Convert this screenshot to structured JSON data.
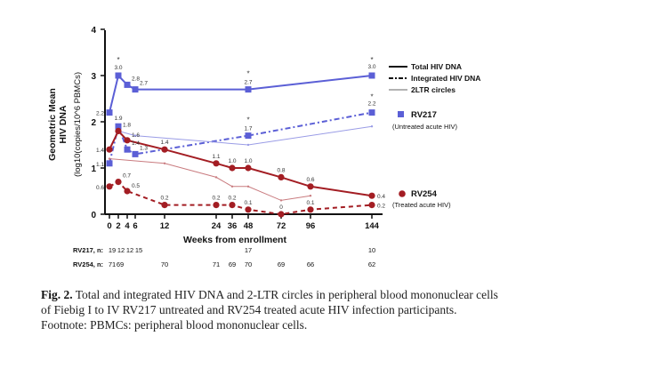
{
  "chart_data": {
    "type": "line",
    "ylabel_line1": "Geometric Mean",
    "ylabel_line2": "HIV DNA",
    "ylabel_line3": "(log10(copies/10^6 PBMCs)",
    "xlabel": "Weeks from enrollment",
    "ylim": [
      0,
      4
    ],
    "yticks": [
      "0",
      "1",
      "2",
      "3",
      "4"
    ],
    "xticks": [
      "0",
      "2",
      "4",
      "6",
      "12",
      "24",
      "36",
      "48",
      "72",
      "96",
      "144"
    ],
    "series": [
      {
        "name": "RV217 Total HIV DNA",
        "color": "#5b5fd6",
        "style": "solid",
        "points": [
          {
            "x": 0,
            "y": 2.2,
            "label": "2.2"
          },
          {
            "x": 2,
            "y": 3.0,
            "label": "3.0"
          },
          {
            "x": 4,
            "y": 2.8,
            "label": "2.8"
          },
          {
            "x": 6,
            "y": 2.7,
            "label": "2.7"
          },
          {
            "x": 48,
            "y": 2.7,
            "label": "2.7"
          },
          {
            "x": 144,
            "y": 3.0,
            "label": "3.0"
          }
        ]
      },
      {
        "name": "RV217 Integrated HIV DNA",
        "color": "#5b5fd6",
        "style": "dashdot",
        "points": [
          {
            "x": 0,
            "y": 1.1,
            "label": "1.1"
          },
          {
            "x": 2,
            "y": 1.9,
            "label": "1.9"
          },
          {
            "x": 4,
            "y": 1.4,
            "label": "1.4"
          },
          {
            "x": 6,
            "y": 1.3,
            "label": "1.3"
          },
          {
            "x": 48,
            "y": 1.7,
            "label": "1.7"
          },
          {
            "x": 144,
            "y": 2.2,
            "label": "2.2"
          }
        ]
      },
      {
        "name": "RV217 2LTR circles",
        "color": "#9a9ce6",
        "style": "thin",
        "points": [
          {
            "x": 2,
            "y": 1.8,
            "label": ""
          },
          {
            "x": 6,
            "y": 1.7,
            "label": ""
          },
          {
            "x": 48,
            "y": 1.5,
            "label": ""
          },
          {
            "x": 144,
            "y": 1.9,
            "label": ""
          }
        ]
      },
      {
        "name": "RV254 Total HIV DNA",
        "color": "#a31d23",
        "style": "solid",
        "points": [
          {
            "x": 0,
            "y": 1.4,
            "label": "1.4"
          },
          {
            "x": 2,
            "y": 1.8,
            "label": "1.8"
          },
          {
            "x": 4,
            "y": 1.6,
            "label": "1.6"
          },
          {
            "x": 12,
            "y": 1.4,
            "label": "1.4"
          },
          {
            "x": 24,
            "y": 1.1,
            "label": "1.1"
          },
          {
            "x": 36,
            "y": 1.0,
            "label": "1.0"
          },
          {
            "x": 48,
            "y": 1.0,
            "label": "1.0"
          },
          {
            "x": 72,
            "y": 0.8,
            "label": "0.8"
          },
          {
            "x": 96,
            "y": 0.6,
            "label": "0.6"
          },
          {
            "x": 144,
            "y": 0.4,
            "label": "0.4"
          }
        ]
      },
      {
        "name": "RV254 Integrated HIV DNA",
        "color": "#a31d23",
        "style": "dashed",
        "points": [
          {
            "x": 0,
            "y": 0.6,
            "label": "0.6"
          },
          {
            "x": 2,
            "y": 0.7,
            "label": "0.7"
          },
          {
            "x": 4,
            "y": 0.5,
            "label": "0.5"
          },
          {
            "x": 12,
            "y": 0.2,
            "label": "0.2"
          },
          {
            "x": 24,
            "y": 0.2,
            "label": "0.2"
          },
          {
            "x": 36,
            "y": 0.2,
            "label": "0.2"
          },
          {
            "x": 48,
            "y": 0.1,
            "label": "0.1"
          },
          {
            "x": 72,
            "y": 0.0,
            "label": "0"
          },
          {
            "x": 96,
            "y": 0.1,
            "label": "0.1"
          },
          {
            "x": 144,
            "y": 0.2,
            "label": "0.2"
          }
        ]
      },
      {
        "name": "RV254 2LTR circles",
        "color": "#c97b7f",
        "style": "thin",
        "points": [
          {
            "x": 0,
            "y": 1.2,
            "label": ""
          },
          {
            "x": 12,
            "y": 1.1,
            "label": ""
          },
          {
            "x": 24,
            "y": 0.8,
            "label": ""
          },
          {
            "x": 36,
            "y": 0.6,
            "label": ""
          },
          {
            "x": 48,
            "y": 0.6,
            "label": ""
          },
          {
            "x": 72,
            "y": 0.3,
            "label": ""
          },
          {
            "x": 96,
            "y": 0.4,
            "label": ""
          }
        ]
      }
    ],
    "asterisks": [
      {
        "x": 2,
        "y": 3.0
      },
      {
        "x": 48,
        "y": 2.7
      },
      {
        "x": 144,
        "y": 3.0
      },
      {
        "x": 48,
        "y": 1.7
      },
      {
        "x": 144,
        "y": 2.2
      }
    ],
    "legend": {
      "total": "Total HIV DNA",
      "integrated": "Integrated HIV DNA",
      "ltr": "2LTR circles",
      "rv217_name": "RV217",
      "rv217_desc": "(Untreated acute HIV)",
      "rv254_name": "RV254",
      "rv254_desc": "(Treated acute HIV)"
    },
    "counts": {
      "rv217": {
        "label": "RV217, n:",
        "values": [
          {
            "x": 0,
            "v": "19"
          },
          {
            "x": 2,
            "v": "12"
          },
          {
            "x": 4,
            "v": "12"
          },
          {
            "x": 6,
            "v": "15"
          },
          {
            "x": 48,
            "v": "17"
          },
          {
            "x": 144,
            "v": "10"
          }
        ]
      },
      "rv254": {
        "label": "RV254, n:",
        "values": [
          {
            "x": 0,
            "v": "71"
          },
          {
            "x": 2,
            "v": "69"
          },
          {
            "x": 12,
            "v": "70"
          },
          {
            "x": 24,
            "v": "71"
          },
          {
            "x": 36,
            "v": "69"
          },
          {
            "x": 48,
            "v": "70"
          },
          {
            "x": 72,
            "v": "69"
          },
          {
            "x": 96,
            "v": "66"
          },
          {
            "x": 144,
            "v": "62"
          }
        ]
      }
    }
  },
  "caption": {
    "fig_label": "Fig. 2.",
    "text": " Total and integrated HIV DNA and 2-LTR circles in peripheral blood mononuclear cells of Fiebig I to IV RV217 untreated and RV254 treated acute HIV infection participants. Footnote: PBMCs: peripheral blood mononuclear cells."
  }
}
